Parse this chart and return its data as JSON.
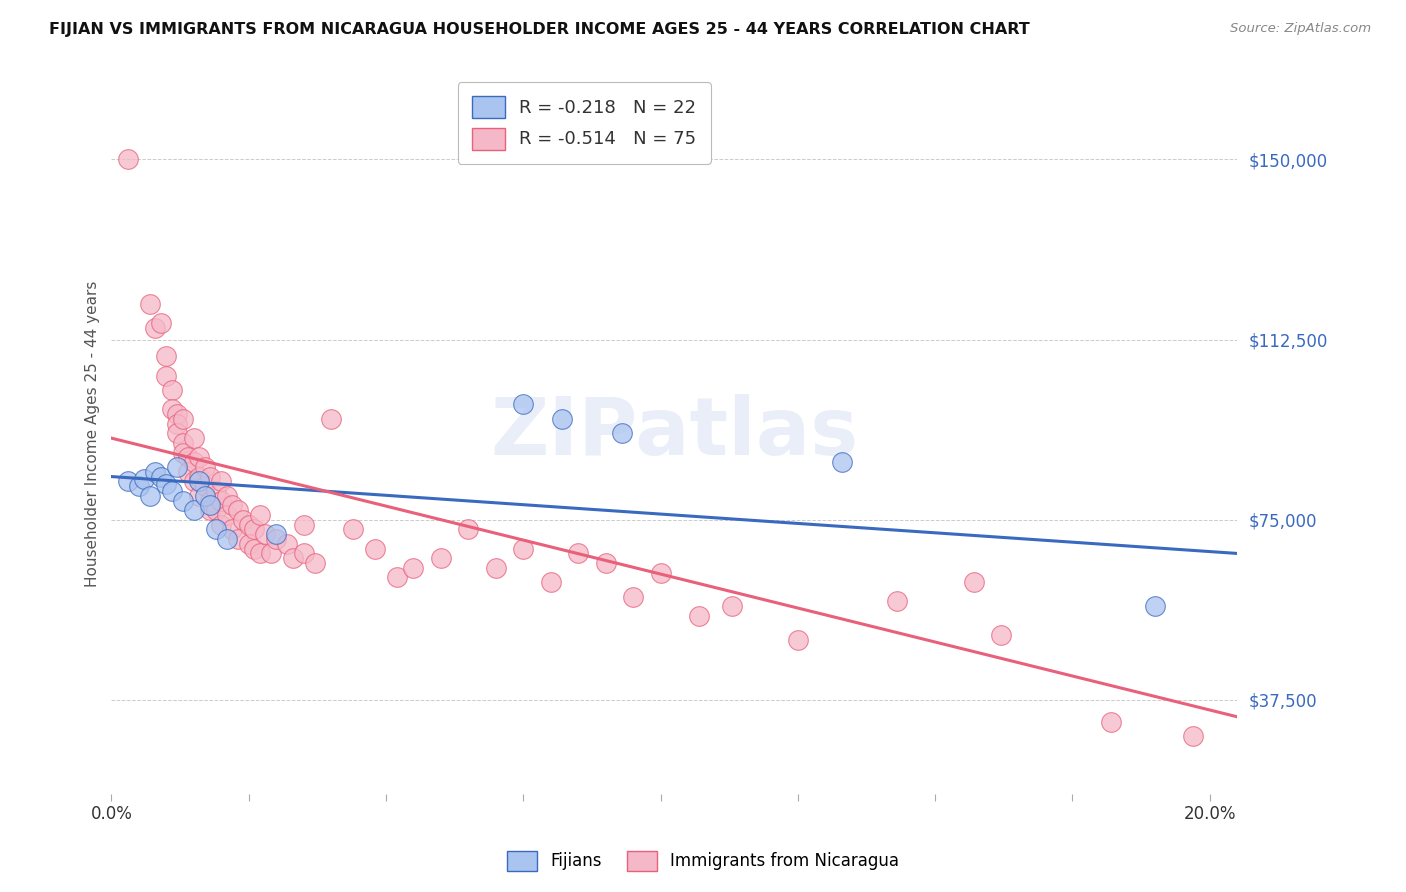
{
  "title": "FIJIAN VS IMMIGRANTS FROM NICARAGUA HOUSEHOLDER INCOME AGES 25 - 44 YEARS CORRELATION CHART",
  "source": "Source: ZipAtlas.com",
  "ylabel": "Householder Income Ages 25 - 44 years",
  "ytick_labels": [
    "$37,500",
    "$75,000",
    "$112,500",
    "$150,000"
  ],
  "ytick_values": [
    37500,
    75000,
    112500,
    150000
  ],
  "ymin": 18000,
  "ymax": 168000,
  "xmin": 0.0,
  "xmax": 0.205,
  "legend_blue_r": "R = -0.218",
  "legend_blue_n": "N = 22",
  "legend_pink_r": "R = -0.514",
  "legend_pink_n": "N = 75",
  "blue_color": "#aac4f0",
  "pink_color": "#f5b8c8",
  "trendline_blue": "#3a6abf",
  "trendline_pink": "#e8607a",
  "watermark": "ZIPatlas",
  "blue_scatter": [
    [
      0.003,
      83000
    ],
    [
      0.005,
      82000
    ],
    [
      0.006,
      83500
    ],
    [
      0.007,
      80000
    ],
    [
      0.008,
      85000
    ],
    [
      0.009,
      84000
    ],
    [
      0.01,
      82500
    ],
    [
      0.011,
      81000
    ],
    [
      0.012,
      86000
    ],
    [
      0.013,
      79000
    ],
    [
      0.015,
      77000
    ],
    [
      0.016,
      83000
    ],
    [
      0.017,
      80000
    ],
    [
      0.018,
      78000
    ],
    [
      0.019,
      73000
    ],
    [
      0.021,
      71000
    ],
    [
      0.03,
      72000
    ],
    [
      0.075,
      99000
    ],
    [
      0.082,
      96000
    ],
    [
      0.093,
      93000
    ],
    [
      0.133,
      87000
    ],
    [
      0.19,
      57000
    ]
  ],
  "pink_scatter": [
    [
      0.003,
      150000
    ],
    [
      0.007,
      120000
    ],
    [
      0.008,
      115000
    ],
    [
      0.009,
      116000
    ],
    [
      0.01,
      109000
    ],
    [
      0.01,
      105000
    ],
    [
      0.011,
      102000
    ],
    [
      0.011,
      98000
    ],
    [
      0.012,
      97000
    ],
    [
      0.012,
      95000
    ],
    [
      0.012,
      93000
    ],
    [
      0.013,
      96000
    ],
    [
      0.013,
      91000
    ],
    [
      0.013,
      89000
    ],
    [
      0.014,
      88000
    ],
    [
      0.014,
      85000
    ],
    [
      0.015,
      92000
    ],
    [
      0.015,
      87000
    ],
    [
      0.015,
      83000
    ],
    [
      0.016,
      88000
    ],
    [
      0.016,
      84000
    ],
    [
      0.016,
      80000
    ],
    [
      0.017,
      86000
    ],
    [
      0.017,
      82000
    ],
    [
      0.018,
      84000
    ],
    [
      0.018,
      79000
    ],
    [
      0.018,
      77000
    ],
    [
      0.019,
      81000
    ],
    [
      0.019,
      77000
    ],
    [
      0.02,
      83000
    ],
    [
      0.02,
      79000
    ],
    [
      0.02,
      74000
    ],
    [
      0.021,
      80000
    ],
    [
      0.021,
      76000
    ],
    [
      0.022,
      78000
    ],
    [
      0.022,
      73000
    ],
    [
      0.023,
      77000
    ],
    [
      0.023,
      71000
    ],
    [
      0.024,
      75000
    ],
    [
      0.025,
      74000
    ],
    [
      0.025,
      70000
    ],
    [
      0.026,
      73000
    ],
    [
      0.026,
      69000
    ],
    [
      0.027,
      76000
    ],
    [
      0.027,
      68000
    ],
    [
      0.028,
      72000
    ],
    [
      0.029,
      68000
    ],
    [
      0.03,
      71000
    ],
    [
      0.032,
      70000
    ],
    [
      0.033,
      67000
    ],
    [
      0.035,
      74000
    ],
    [
      0.035,
      68000
    ],
    [
      0.037,
      66000
    ],
    [
      0.04,
      96000
    ],
    [
      0.044,
      73000
    ],
    [
      0.048,
      69000
    ],
    [
      0.052,
      63000
    ],
    [
      0.055,
      65000
    ],
    [
      0.06,
      67000
    ],
    [
      0.065,
      73000
    ],
    [
      0.07,
      65000
    ],
    [
      0.075,
      69000
    ],
    [
      0.08,
      62000
    ],
    [
      0.085,
      68000
    ],
    [
      0.09,
      66000
    ],
    [
      0.095,
      59000
    ],
    [
      0.1,
      64000
    ],
    [
      0.107,
      55000
    ],
    [
      0.113,
      57000
    ],
    [
      0.125,
      50000
    ],
    [
      0.143,
      58000
    ],
    [
      0.157,
      62000
    ],
    [
      0.162,
      51000
    ],
    [
      0.182,
      33000
    ],
    [
      0.197,
      30000
    ]
  ],
  "blue_trend_x": [
    0.0,
    0.205
  ],
  "blue_trend_y": [
    84000,
    68000
  ],
  "pink_trend_x": [
    0.0,
    0.205
  ],
  "pink_trend_y": [
    92000,
    34000
  ]
}
